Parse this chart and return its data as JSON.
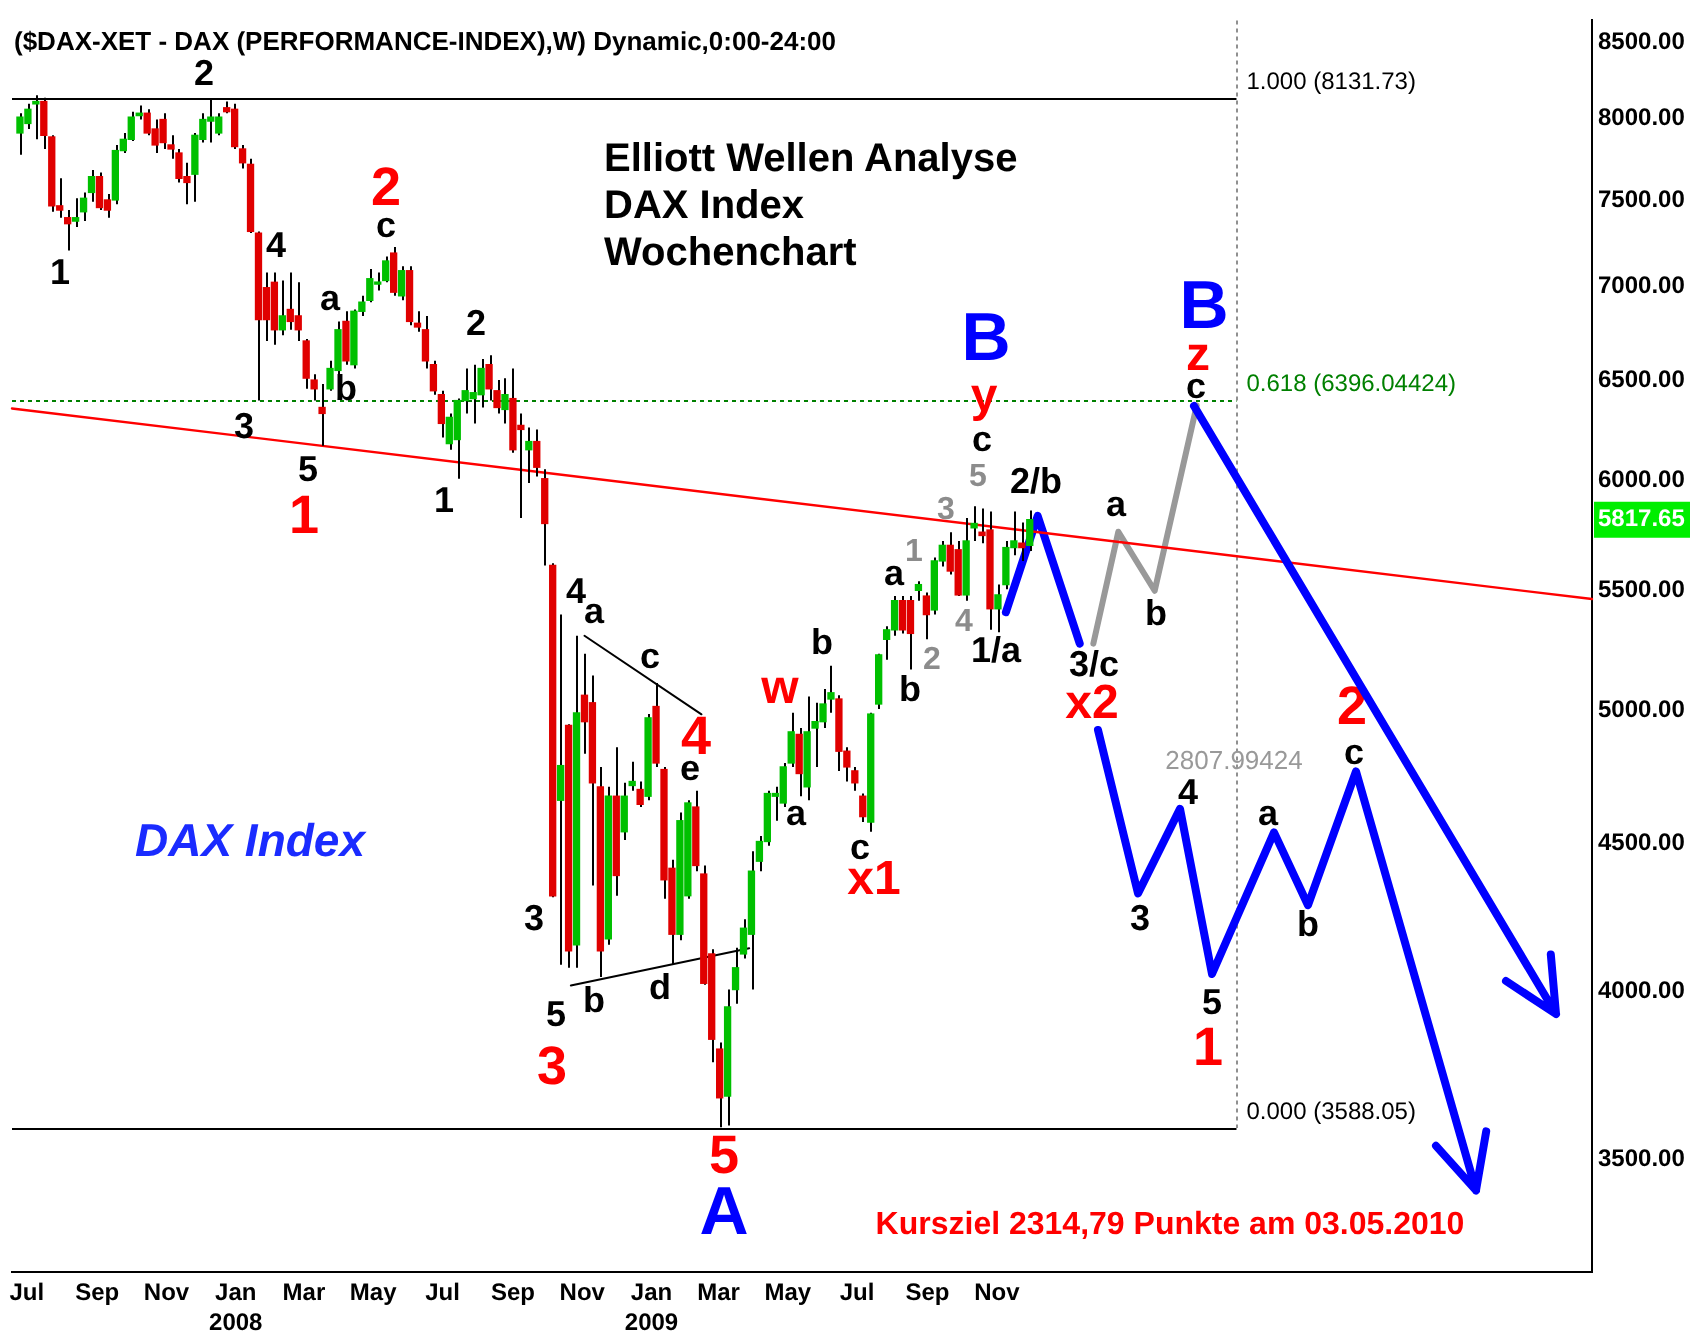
{
  "chart_data": {
    "type": "candlestick",
    "title": "($DAX-XET - DAX (PERFORMANCE-INDEX),W) Dynamic,0:00-24:00",
    "subtitle": "Elliott Wellen Analyse\nDAX Index\nWochenchart",
    "log": true,
    "xlim": [
      "2007-06-18",
      "2011-04-09"
    ],
    "xticks": [
      {
        "value": "2007-07-01",
        "label": "Jul"
      },
      {
        "value": "2007-09-01",
        "label": "Sep"
      },
      {
        "value": "2007-11-01",
        "label": "Nov"
      },
      {
        "value": "2008-01-01",
        "label": "Jan\n2008"
      },
      {
        "value": "2008-03-01",
        "label": "Mar"
      },
      {
        "value": "2008-05-01",
        "label": "May"
      },
      {
        "value": "2008-07-01",
        "label": "Jul"
      },
      {
        "value": "2008-09-01",
        "label": "Sep"
      },
      {
        "value": "2008-11-01",
        "label": "Nov"
      },
      {
        "value": "2009-01-01",
        "label": "Jan\n2009"
      },
      {
        "value": "2009-03-01",
        "label": "Mar"
      },
      {
        "value": "2009-05-01",
        "label": "May"
      },
      {
        "value": "2009-07-01",
        "label": "Jul"
      },
      {
        "value": "2009-09-01",
        "label": "Sep"
      },
      {
        "value": "2009-11-01",
        "label": "Nov"
      }
    ],
    "ylim": [
      3200,
      8650
    ],
    "yticks": [
      {
        "value": 3500,
        "label": "3500.00"
      },
      {
        "value": 4000,
        "label": "4000.00"
      },
      {
        "value": 4500,
        "label": "4500.00"
      },
      {
        "value": 5000,
        "label": "5000.00"
      },
      {
        "value": 5500,
        "label": "5500.00"
      },
      {
        "value": 6000,
        "label": "6000.00"
      },
      {
        "value": 6500,
        "label": "6500.00"
      },
      {
        "value": 7000,
        "label": "7000.00"
      },
      {
        "value": 7500,
        "label": "7500.00"
      },
      {
        "value": 8000,
        "label": "8000.00"
      },
      {
        "value": 8500,
        "label": "8500.00"
      }
    ],
    "x": [
      "2007-06-25",
      "2007-07-02",
      "2007-07-09",
      "2007-07-16",
      "2007-07-23",
      "2007-07-30",
      "2007-08-06",
      "2007-08-13",
      "2007-08-20",
      "2007-08-27",
      "2007-09-03",
      "2007-09-10",
      "2007-09-17",
      "2007-09-24",
      "2007-10-01",
      "2007-10-08",
      "2007-10-15",
      "2007-10-22",
      "2007-10-29",
      "2007-11-05",
      "2007-11-12",
      "2007-11-19",
      "2007-11-26",
      "2007-12-03",
      "2007-12-10",
      "2007-12-17",
      "2007-12-24",
      "2007-12-31",
      "2008-01-07",
      "2008-01-14",
      "2008-01-21",
      "2008-01-28",
      "2008-02-04",
      "2008-02-11",
      "2008-02-18",
      "2008-02-25",
      "2008-03-03",
      "2008-03-10",
      "2008-03-17",
      "2008-03-24",
      "2008-03-31",
      "2008-04-07",
      "2008-04-14",
      "2008-04-21",
      "2008-04-28",
      "2008-05-05",
      "2008-05-12",
      "2008-05-19",
      "2008-05-26",
      "2008-06-02",
      "2008-06-09",
      "2008-06-16",
      "2008-06-23",
      "2008-06-30",
      "2008-07-07",
      "2008-07-14",
      "2008-07-21",
      "2008-07-28",
      "2008-08-04",
      "2008-08-11",
      "2008-08-18",
      "2008-08-25",
      "2008-09-01",
      "2008-09-08",
      "2008-09-15",
      "2008-09-22",
      "2008-09-29",
      "2008-10-06",
      "2008-10-13",
      "2008-10-20",
      "2008-10-27",
      "2008-11-03",
      "2008-11-10",
      "2008-11-17",
      "2008-11-24",
      "2008-12-01",
      "2008-12-08",
      "2008-12-15",
      "2008-12-22",
      "2008-12-29",
      "2009-01-05",
      "2009-01-12",
      "2009-01-19",
      "2009-01-26",
      "2009-02-02",
      "2009-02-09",
      "2009-02-16",
      "2009-02-23",
      "2009-03-02",
      "2009-03-09",
      "2009-03-16",
      "2009-03-23",
      "2009-03-30",
      "2009-04-06",
      "2009-04-13",
      "2009-04-20",
      "2009-04-27",
      "2009-05-04",
      "2009-05-11",
      "2009-05-18",
      "2009-05-25",
      "2009-06-01",
      "2009-06-08",
      "2009-06-15",
      "2009-06-22",
      "2009-06-29",
      "2009-07-06",
      "2009-07-13",
      "2009-07-20",
      "2009-07-27",
      "2009-08-03",
      "2009-08-10",
      "2009-08-17",
      "2009-08-24",
      "2009-08-31",
      "2009-09-07",
      "2009-09-14",
      "2009-09-21",
      "2009-09-28",
      "2009-10-05",
      "2009-10-12",
      "2009-10-19",
      "2009-10-26",
      "2009-11-02",
      "2009-11-09",
      "2009-11-16",
      "2009-11-23",
      "2009-11-30"
    ],
    "ohlc": [
      [
        7910,
        8035,
        7775,
        8010
      ],
      [
        7970,
        8095,
        7935,
        8060
      ],
      [
        8095,
        8150,
        7870,
        8110
      ],
      [
        8110,
        8135,
        7810,
        7895
      ],
      [
        7885,
        7895,
        7430,
        7465
      ],
      [
        7465,
        7630,
        7395,
        7440
      ],
      [
        7395,
        7440,
        7205,
        7360
      ],
      [
        7375,
        7510,
        7340,
        7395
      ],
      [
        7430,
        7545,
        7375,
        7510
      ],
      [
        7545,
        7680,
        7490,
        7640
      ],
      [
        7640,
        7665,
        7440,
        7455
      ],
      [
        7500,
        7535,
        7395,
        7440
      ],
      [
        7500,
        7835,
        7475,
        7800
      ],
      [
        7800,
        7910,
        7785,
        7870
      ],
      [
        7870,
        8045,
        7860,
        8010
      ],
      [
        8020,
        8085,
        7995,
        8035
      ],
      [
        8035,
        8060,
        7895,
        7910
      ],
      [
        7935,
        7995,
        7785,
        7835
      ],
      [
        7995,
        8035,
        7810,
        7850
      ],
      [
        7835,
        7895,
        7750,
        7810
      ],
      [
        7785,
        7810,
        7605,
        7630
      ],
      [
        7640,
        7725,
        7475,
        7605
      ],
      [
        7655,
        7910,
        7490,
        7895
      ],
      [
        7870,
        8035,
        7850,
        7995
      ],
      [
        7985,
        8130,
        7850,
        8010
      ],
      [
        7910,
        8035,
        7895,
        8010
      ],
      [
        8070,
        8110,
        8035,
        8045
      ],
      [
        8060,
        8095,
        7810,
        7825
      ],
      [
        7810,
        7835,
        7690,
        7725
      ],
      [
        7715,
        7750,
        7305,
        7315
      ],
      [
        7305,
        7315,
        6395,
        6820
      ],
      [
        6995,
        7080,
        6705,
        6820
      ],
      [
        7025,
        7080,
        6685,
        6765
      ],
      [
        6765,
        7035,
        6735,
        6840
      ],
      [
        6875,
        7080,
        6765,
        6810
      ],
      [
        6840,
        7025,
        6705,
        6765
      ],
      [
        6705,
        6715,
        6455,
        6510
      ],
      [
        6500,
        6530,
        6395,
        6455
      ],
      [
        6360,
        6480,
        6170,
        6330
      ],
      [
        6455,
        6600,
        6445,
        6560
      ],
      [
        6550,
        6810,
        6530,
        6765
      ],
      [
        6810,
        6865,
        6580,
        6600
      ],
      [
        6580,
        6875,
        6560,
        6865
      ],
      [
        6865,
        6950,
        6840,
        6915
      ],
      [
        6925,
        7100,
        6915,
        7045
      ],
      [
        7015,
        7080,
        6980,
        7025
      ],
      [
        7035,
        7170,
        7025,
        7145
      ],
      [
        7190,
        7225,
        6950,
        6970
      ],
      [
        6950,
        7115,
        6925,
        7090
      ],
      [
        7090,
        7115,
        6790,
        6810
      ],
      [
        6800,
        6865,
        6755,
        6780
      ],
      [
        6765,
        6840,
        6560,
        6600
      ],
      [
        6580,
        6600,
        6425,
        6445
      ],
      [
        6425,
        6445,
        6210,
        6280
      ],
      [
        6180,
        6330,
        6150,
        6310
      ],
      [
        6200,
        6405,
        6010,
        6395
      ],
      [
        6395,
        6560,
        6330,
        6445
      ],
      [
        6405,
        6580,
        6280,
        6435
      ],
      [
        6425,
        6610,
        6360,
        6560
      ],
      [
        6580,
        6630,
        6395,
        6455
      ],
      [
        6445,
        6500,
        6330,
        6360
      ],
      [
        6350,
        6510,
        6280,
        6425
      ],
      [
        6405,
        6560,
        6135,
        6150
      ],
      [
        6270,
        6330,
        5825,
        6250
      ],
      [
        6150,
        6260,
        5990,
        6190
      ],
      [
        6190,
        6250,
        6020,
        6065
      ],
      [
        6010,
        6055,
        5610,
        5800
      ],
      [
        5610,
        5620,
        4310,
        4315
      ],
      [
        4655,
        5395,
        4085,
        4785
      ],
      [
        4940,
        4945,
        4075,
        4130
      ],
      [
        4150,
        5305,
        4075,
        4990
      ],
      [
        5060,
        5230,
        4830,
        4955
      ],
      [
        5030,
        5140,
        4350,
        4720
      ],
      [
        4705,
        4780,
        4045,
        4130
      ],
      [
        4170,
        4705,
        4150,
        4670
      ],
      [
        4670,
        4855,
        4315,
        4385
      ],
      [
        4540,
        4720,
        4510,
        4670
      ],
      [
        4710,
        4800,
        4690,
        4725
      ],
      [
        4695,
        4725,
        4630,
        4640
      ],
      [
        4670,
        4985,
        4655,
        4970
      ],
      [
        5015,
        5110,
        4780,
        4795
      ],
      [
        4770,
        4780,
        4305,
        4370
      ],
      [
        4410,
        4440,
        4085,
        4185
      ],
      [
        4185,
        4610,
        4165,
        4580
      ],
      [
        4315,
        4655,
        4305,
        4645
      ],
      [
        4630,
        4690,
        4400,
        4420
      ],
      [
        4390,
        4420,
        4020,
        4025
      ],
      [
        4120,
        4135,
        3780,
        3850
      ],
      [
        3820,
        3840,
        3590,
        3675
      ],
      [
        3680,
        4005,
        3595,
        3950
      ],
      [
        4005,
        4140,
        3960,
        4075
      ],
      [
        4120,
        4235,
        4105,
        4205
      ],
      [
        4185,
        4470,
        4005,
        4400
      ],
      [
        4435,
        4525,
        4400,
        4505
      ],
      [
        4505,
        4690,
        4490,
        4680
      ],
      [
        4670,
        4705,
        4580,
        4680
      ],
      [
        4645,
        4795,
        4630,
        4780
      ],
      [
        4795,
        4990,
        4780,
        4915
      ],
      [
        4905,
        4930,
        4670,
        4755
      ],
      [
        4705,
        5055,
        4655,
        4915
      ],
      [
        4930,
        5030,
        4780,
        4955
      ],
      [
        4955,
        5085,
        4930,
        5025
      ],
      [
        5045,
        5180,
        4990,
        5070
      ],
      [
        5045,
        5060,
        4765,
        4840
      ],
      [
        4840,
        4855,
        4725,
        4780
      ],
      [
        4765,
        4780,
        4690,
        4720
      ],
      [
        4670,
        4680,
        4575,
        4595
      ],
      [
        4575,
        4990,
        4540,
        4985
      ],
      [
        5025,
        5230,
        5005,
        5225
      ],
      [
        5290,
        5345,
        5205,
        5330
      ],
      [
        5330,
        5475,
        5305,
        5455
      ],
      [
        5455,
        5475,
        5315,
        5330
      ],
      [
        5455,
        5475,
        5165,
        5315
      ],
      [
        5500,
        5540,
        5455,
        5525
      ],
      [
        5475,
        5490,
        5290,
        5395
      ],
      [
        5415,
        5645,
        5395,
        5630
      ],
      [
        5630,
        5720,
        5605,
        5700
      ],
      [
        5700,
        5760,
        5570,
        5585
      ],
      [
        5680,
        5720,
        5475,
        5480
      ],
      [
        5480,
        5825,
        5455,
        5720
      ],
      [
        5780,
        5880,
        5720,
        5800
      ],
      [
        5760,
        5870,
        5710,
        5745
      ],
      [
        5770,
        5855,
        5330,
        5420
      ],
      [
        5420,
        5525,
        5320,
        5480
      ],
      [
        5525,
        5720,
        5505,
        5690
      ],
      [
        5690,
        5855,
        5655,
        5720
      ],
      [
        5710,
        5805,
        5630,
        5690
      ],
      [
        5700,
        5860,
        5675,
        5817.65
      ]
    ],
    "colors": [
      "#00c000",
      "#00c000",
      "#00c000",
      "#e00000",
      "#e00000",
      "#e00000",
      "#e00000",
      "#00c000",
      "#00c000",
      "#00c000",
      "#e00000",
      "#e00000",
      "#00c000",
      "#00c000",
      "#00c000",
      "#00c000",
      "#e00000",
      "#e00000",
      "#e00000",
      "#e00000",
      "#e00000",
      "#e00000",
      "#00c000",
      "#00c000",
      "#00c000",
      "#00c000",
      "#e00000",
      "#e00000",
      "#e00000",
      "#e00000",
      "#e00000",
      "#e00000",
      "#e00000",
      "#00c000",
      "#e00000",
      "#e00000",
      "#e00000",
      "#e00000",
      "#e00000",
      "#00c000",
      "#00c000",
      "#e00000",
      "#00c000",
      "#00c000",
      "#00c000",
      "#00c000",
      "#00c000",
      "#e00000",
      "#00c000",
      "#e00000",
      "#e00000",
      "#e00000",
      "#e00000",
      "#e00000",
      "#00c000",
      "#00c000",
      "#00c000",
      "#00c000",
      "#00c000",
      "#e00000",
      "#e00000",
      "#00c000",
      "#e00000",
      "#e00000",
      "#00c000",
      "#e00000",
      "#e00000",
      "#e00000",
      "#00c000",
      "#e00000",
      "#00c000",
      "#e00000",
      "#e00000",
      "#e00000",
      "#00c000",
      "#e00000",
      "#00c000",
      "#00c000",
      "#e00000",
      "#00c000",
      "#e00000",
      "#e00000",
      "#e00000",
      "#00c000",
      "#00c000",
      "#e00000",
      "#e00000",
      "#e00000",
      "#e00000",
      "#00c000",
      "#00c000",
      "#00c000",
      "#00c000",
      "#00c000",
      "#00c000",
      "#00c000",
      "#00c000",
      "#00c000",
      "#e00000",
      "#00c000",
      "#00c000",
      "#00c000",
      "#00c000",
      "#e00000",
      "#e00000",
      "#e00000",
      "#e00000",
      "#00c000",
      "#00c000",
      "#00c000",
      "#00c000",
      "#e00000",
      "#e00000",
      "#00c000",
      "#e00000",
      "#00c000",
      "#00c000",
      "#e00000",
      "#e00000",
      "#00c000",
      "#00c000",
      "#e00000",
      "#e00000",
      "#00c000",
      "#00c000",
      "#00c000",
      "#e00000",
      "#00c000"
    ],
    "series": [
      {
        "type": "line",
        "color": "#ff0000",
        "x": [
          "2007-06-18",
          "2011-04-09"
        ],
        "values": [
          6355,
          5462
        ]
      },
      {
        "type": "line",
        "color": "#000000",
        "x": [
          "2008-11-03",
          "2009-02-14"
        ],
        "values": [
          5305,
          4984
        ]
      },
      {
        "type": "line",
        "color": "#000000",
        "x": [
          "2008-10-22",
          "2009-03-28"
        ],
        "values": [
          4018,
          4139
        ]
      },
      {
        "type": "line",
        "color": "#0000ff",
        "x": [
          "2009-11-09",
          "2009-12-07",
          "2010-01-13"
        ],
        "values": [
          5405,
          5835,
          5272
        ]
      },
      {
        "type": "line",
        "color": "#999999",
        "x": [
          "2010-01-25",
          "2010-02-16",
          "2010-03-20",
          "2010-04-26"
        ],
        "values": [
          5272,
          5762,
          5498,
          6370
        ]
      }
    ],
    "ref_lines": [
      {
        "axis": "y",
        "value": 8131.73,
        "label": "1.000 (8131.73)",
        "color": "#000000"
      },
      {
        "axis": "y",
        "value": 6396.04424,
        "label": "0.618 (6396.04424)",
        "color": "#008000",
        "line_style": "dotted"
      },
      {
        "axis": "y",
        "value": 3588.05,
        "label": "0.000 (3588.05)",
        "color": "#000000"
      },
      {
        "axis": "x",
        "value": "2010-05-31",
        "color": "#909090",
        "line_style": "dotted"
      }
    ],
    "annotations": [
      "2",
      "1",
      "4",
      "3",
      "5",
      "a",
      "b",
      "c",
      "2",
      "1",
      "4",
      "a",
      "c",
      "e",
      "3",
      "5",
      "b",
      "d",
      "a",
      "b",
      "c",
      "a",
      "b",
      "c",
      "1/a",
      "2/b",
      "3/c",
      "a",
      "b",
      "c",
      "3",
      "4",
      "5",
      "a",
      "b",
      "c",
      "1",
      "2",
      "3",
      "4",
      "5",
      "2",
      "1",
      "4",
      "3",
      "w",
      "5",
      "x1",
      "y",
      "x2",
      "z",
      "1",
      "2",
      "B",
      "A",
      "B",
      "2807.99424",
      "DAX Index",
      "Kursziel 2314,79 Punkte am 03.05.2010",
      "5817.65"
    ]
  }
}
